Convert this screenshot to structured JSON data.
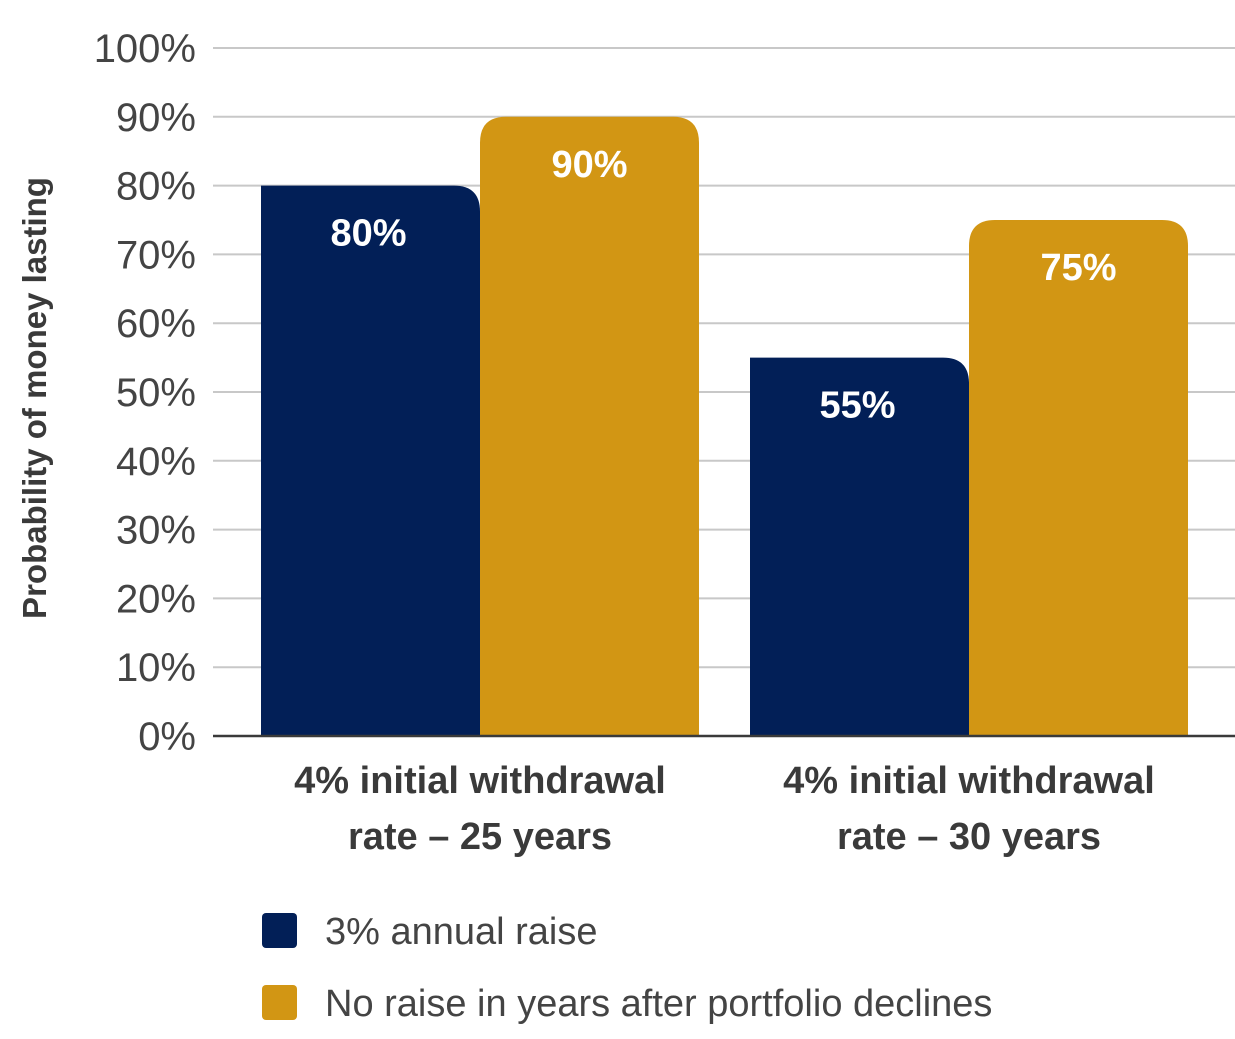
{
  "chart_data": {
    "type": "bar",
    "ylabel": "Probability of money lasting",
    "ylim": [
      0,
      100
    ],
    "yticks": [
      0,
      10,
      20,
      30,
      40,
      50,
      60,
      70,
      80,
      90,
      100
    ],
    "ytick_labels": [
      "0%",
      "10%",
      "20%",
      "30%",
      "40%",
      "50%",
      "60%",
      "70%",
      "80%",
      "90%",
      "100%"
    ],
    "grid": true,
    "legend_position": "bottom-left",
    "categories": [
      [
        "4% initial withdrawal",
        "rate – 25 years"
      ],
      [
        "4% initial withdrawal",
        "rate – 30 years"
      ]
    ],
    "series": [
      {
        "name": "3% annual raise",
        "color": "#021F57",
        "values": [
          80,
          55
        ],
        "labels": [
          "80%",
          "55%"
        ]
      },
      {
        "name": "No raise in years after portfolio declines",
        "color": "#D29614",
        "values": [
          90,
          75
        ],
        "labels": [
          "90%",
          "75%"
        ]
      }
    ]
  }
}
